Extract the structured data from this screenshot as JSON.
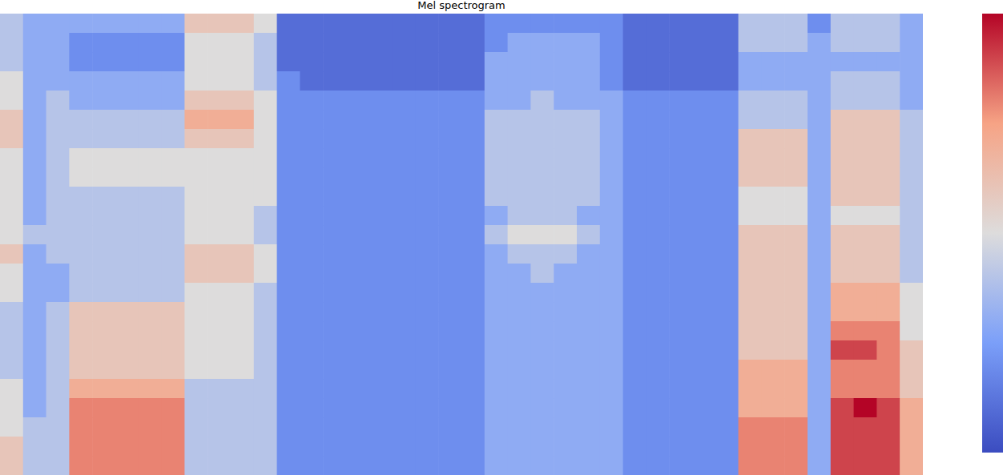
{
  "chart_data": {
    "type": "heatmap",
    "title": "Mel spectrogram",
    "tick_labels": false,
    "colorbar_range": [
      0,
      10
    ],
    "cells": [
      [
        4,
        3,
        3,
        3,
        3,
        3,
        3,
        3,
        6,
        6,
        6,
        5,
        1,
        1,
        1,
        1,
        1,
        1,
        1,
        1,
        1,
        2,
        2,
        2,
        2,
        2,
        2,
        1,
        1,
        1,
        1,
        1,
        4,
        4,
        4,
        2,
        4,
        4,
        4,
        3
      ],
      [
        4,
        3,
        3,
        2,
        2,
        2,
        2,
        2,
        5,
        5,
        5,
        4,
        1,
        1,
        1,
        1,
        1,
        1,
        1,
        1,
        1,
        2,
        3,
        3,
        3,
        3,
        2,
        1,
        1,
        1,
        1,
        1,
        4,
        4,
        4,
        3,
        4,
        4,
        4,
        3
      ],
      [
        4,
        3,
        3,
        2,
        2,
        2,
        2,
        2,
        5,
        5,
        5,
        4,
        1,
        1,
        1,
        1,
        1,
        1,
        1,
        1,
        1,
        3,
        3,
        3,
        3,
        3,
        2,
        1,
        1,
        1,
        1,
        1,
        3,
        3,
        3,
        3,
        3,
        3,
        3,
        3
      ],
      [
        5,
        3,
        3,
        3,
        3,
        3,
        3,
        3,
        5,
        5,
        5,
        4,
        2,
        1,
        1,
        1,
        1,
        1,
        1,
        1,
        1,
        3,
        3,
        3,
        3,
        3,
        2,
        1,
        1,
        1,
        1,
        1,
        3,
        3,
        3,
        3,
        4,
        4,
        4,
        3
      ],
      [
        5,
        3,
        4,
        3,
        3,
        3,
        3,
        3,
        6,
        6,
        6,
        5,
        2,
        2,
        2,
        2,
        2,
        2,
        2,
        2,
        2,
        3,
        3,
        4,
        3,
        3,
        3,
        2,
        2,
        2,
        2,
        2,
        4,
        4,
        4,
        3,
        4,
        4,
        4,
        3
      ],
      [
        6,
        3,
        4,
        4,
        4,
        4,
        4,
        4,
        7,
        7,
        7,
        5,
        2,
        2,
        2,
        2,
        2,
        2,
        2,
        2,
        2,
        4,
        4,
        4,
        4,
        4,
        3,
        2,
        2,
        2,
        2,
        2,
        4,
        4,
        4,
        3,
        6,
        6,
        6,
        4
      ],
      [
        6,
        3,
        4,
        4,
        4,
        4,
        4,
        4,
        6,
        6,
        6,
        5,
        2,
        2,
        2,
        2,
        2,
        2,
        2,
        2,
        2,
        4,
        4,
        4,
        4,
        4,
        3,
        2,
        2,
        2,
        2,
        2,
        6,
        6,
        6,
        3,
        6,
        6,
        6,
        4
      ],
      [
        5,
        3,
        4,
        5,
        5,
        5,
        5,
        5,
        5,
        5,
        5,
        5,
        2,
        2,
        2,
        2,
        2,
        2,
        2,
        2,
        2,
        4,
        4,
        4,
        4,
        4,
        3,
        2,
        2,
        2,
        2,
        2,
        6,
        6,
        6,
        3,
        6,
        6,
        6,
        4
      ],
      [
        5,
        3,
        4,
        5,
        5,
        5,
        5,
        5,
        5,
        5,
        5,
        5,
        2,
        2,
        2,
        2,
        2,
        2,
        2,
        2,
        2,
        4,
        4,
        4,
        4,
        4,
        3,
        2,
        2,
        2,
        2,
        2,
        6,
        6,
        6,
        3,
        6,
        6,
        6,
        4
      ],
      [
        5,
        3,
        4,
        4,
        4,
        4,
        4,
        4,
        5,
        5,
        5,
        5,
        2,
        2,
        2,
        2,
        2,
        2,
        2,
        2,
        2,
        4,
        4,
        4,
        4,
        4,
        3,
        2,
        2,
        2,
        2,
        2,
        5,
        5,
        5,
        3,
        6,
        6,
        6,
        4
      ],
      [
        5,
        3,
        4,
        4,
        4,
        4,
        4,
        4,
        5,
        5,
        5,
        4,
        2,
        2,
        2,
        2,
        2,
        2,
        2,
        2,
        2,
        3,
        4,
        4,
        4,
        3,
        3,
        2,
        2,
        2,
        2,
        2,
        5,
        5,
        5,
        3,
        5,
        5,
        5,
        4
      ],
      [
        5,
        4,
        4,
        4,
        4,
        4,
        4,
        4,
        5,
        5,
        5,
        4,
        2,
        2,
        2,
        2,
        2,
        2,
        2,
        2,
        2,
        4,
        5,
        5,
        5,
        4,
        3,
        2,
        2,
        2,
        2,
        2,
        6,
        6,
        6,
        3,
        6,
        6,
        6,
        4
      ],
      [
        6,
        3,
        4,
        4,
        4,
        4,
        4,
        4,
        6,
        6,
        6,
        5,
        2,
        2,
        2,
        2,
        2,
        2,
        2,
        2,
        2,
        3,
        4,
        4,
        4,
        3,
        3,
        2,
        2,
        2,
        2,
        2,
        6,
        6,
        6,
        3,
        6,
        6,
        6,
        4
      ],
      [
        5,
        3,
        3,
        4,
        4,
        4,
        4,
        4,
        6,
        6,
        6,
        5,
        2,
        2,
        2,
        2,
        2,
        2,
        2,
        2,
        2,
        3,
        3,
        4,
        3,
        3,
        3,
        2,
        2,
        2,
        2,
        2,
        6,
        6,
        6,
        3,
        6,
        6,
        6,
        4
      ],
      [
        5,
        3,
        3,
        4,
        4,
        4,
        4,
        4,
        5,
        5,
        5,
        4,
        2,
        2,
        2,
        2,
        2,
        2,
        2,
        2,
        2,
        3,
        3,
        3,
        3,
        3,
        3,
        2,
        2,
        2,
        2,
        2,
        6,
        6,
        6,
        3,
        7,
        7,
        7,
        5
      ],
      [
        4,
        3,
        4,
        6,
        6,
        6,
        6,
        6,
        5,
        5,
        5,
        4,
        2,
        2,
        2,
        2,
        2,
        2,
        2,
        2,
        2,
        3,
        3,
        3,
        3,
        3,
        3,
        2,
        2,
        2,
        2,
        2,
        6,
        6,
        6,
        3,
        7,
        7,
        7,
        5
      ],
      [
        4,
        3,
        4,
        6,
        6,
        6,
        6,
        6,
        5,
        5,
        5,
        4,
        2,
        2,
        2,
        2,
        2,
        2,
        2,
        2,
        2,
        3,
        3,
        3,
        3,
        3,
        3,
        2,
        2,
        2,
        2,
        2,
        6,
        6,
        6,
        3,
        8,
        8,
        8,
        5
      ],
      [
        4,
        3,
        4,
        6,
        6,
        6,
        6,
        6,
        5,
        5,
        5,
        4,
        2,
        2,
        2,
        2,
        2,
        2,
        2,
        2,
        2,
        3,
        3,
        3,
        3,
        3,
        3,
        2,
        2,
        2,
        2,
        2,
        6,
        6,
        6,
        3,
        9,
        9,
        8,
        6
      ],
      [
        4,
        3,
        4,
        6,
        6,
        6,
        6,
        6,
        5,
        5,
        5,
        4,
        2,
        2,
        2,
        2,
        2,
        2,
        2,
        2,
        2,
        3,
        3,
        3,
        3,
        3,
        3,
        2,
        2,
        2,
        2,
        2,
        7,
        7,
        7,
        3,
        8,
        8,
        8,
        6
      ],
      [
        5,
        3,
        4,
        7,
        7,
        7,
        7,
        7,
        4,
        4,
        4,
        4,
        2,
        2,
        2,
        2,
        2,
        2,
        2,
        2,
        2,
        3,
        3,
        3,
        3,
        3,
        3,
        2,
        2,
        2,
        2,
        2,
        7,
        7,
        7,
        3,
        8,
        8,
        8,
        6
      ],
      [
        5,
        3,
        4,
        8,
        8,
        8,
        8,
        8,
        4,
        4,
        4,
        4,
        2,
        2,
        2,
        2,
        2,
        2,
        2,
        2,
        2,
        3,
        3,
        3,
        3,
        3,
        3,
        2,
        2,
        2,
        2,
        2,
        7,
        7,
        7,
        3,
        9,
        10,
        9,
        7
      ],
      [
        5,
        4,
        4,
        8,
        8,
        8,
        8,
        8,
        4,
        4,
        4,
        4,
        2,
        2,
        2,
        2,
        2,
        2,
        2,
        2,
        2,
        3,
        3,
        3,
        3,
        3,
        3,
        2,
        2,
        2,
        2,
        2,
        8,
        8,
        8,
        3,
        9,
        9,
        9,
        7
      ],
      [
        6,
        4,
        4,
        8,
        8,
        8,
        8,
        8,
        4,
        4,
        4,
        4,
        2,
        2,
        2,
        2,
        2,
        2,
        2,
        2,
        2,
        3,
        3,
        3,
        3,
        3,
        3,
        2,
        2,
        2,
        2,
        2,
        8,
        8,
        8,
        3,
        9,
        9,
        9,
        7
      ],
      [
        6,
        4,
        4,
        8,
        8,
        8,
        8,
        8,
        4,
        4,
        4,
        4,
        2,
        2,
        2,
        2,
        2,
        2,
        2,
        2,
        2,
        3,
        3,
        3,
        3,
        3,
        3,
        2,
        2,
        2,
        2,
        2,
        8,
        8,
        8,
        3,
        9,
        9,
        9,
        7
      ]
    ]
  }
}
